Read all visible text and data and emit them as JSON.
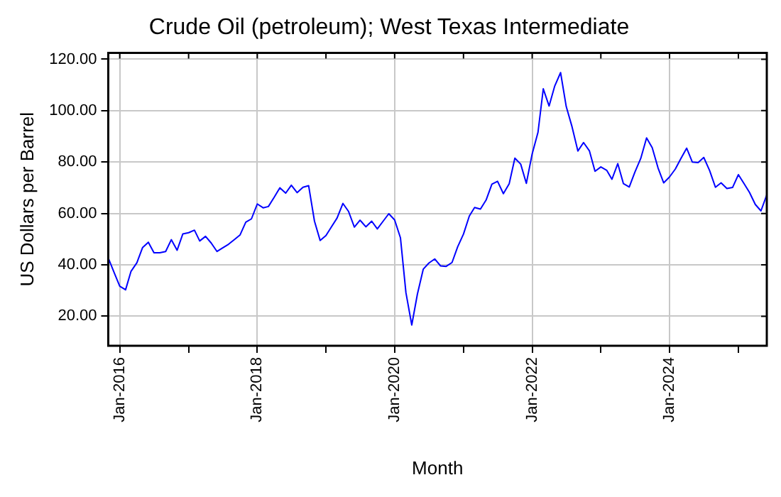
{
  "chart_data": {
    "type": "line",
    "title": "Crude Oil (petroleum); West Texas Intermediate",
    "xlabel": "Month",
    "ylabel": "US Dollars per Barrel",
    "x": [
      "2015-11",
      "2015-12",
      "2016-01",
      "2016-02",
      "2016-03",
      "2016-04",
      "2016-05",
      "2016-06",
      "2016-07",
      "2016-08",
      "2016-09",
      "2016-10",
      "2016-11",
      "2016-12",
      "2017-01",
      "2017-02",
      "2017-03",
      "2017-04",
      "2017-05",
      "2017-06",
      "2017-07",
      "2017-08",
      "2017-09",
      "2017-10",
      "2017-11",
      "2017-12",
      "2018-01",
      "2018-02",
      "2018-03",
      "2018-04",
      "2018-05",
      "2018-06",
      "2018-07",
      "2018-08",
      "2018-09",
      "2018-10",
      "2018-11",
      "2018-12",
      "2019-01",
      "2019-02",
      "2019-03",
      "2019-04",
      "2019-05",
      "2019-06",
      "2019-07",
      "2019-08",
      "2019-09",
      "2019-10",
      "2019-11",
      "2019-12",
      "2020-01",
      "2020-02",
      "2020-03",
      "2020-04",
      "2020-05",
      "2020-06",
      "2020-07",
      "2020-08",
      "2020-09",
      "2020-10",
      "2020-11",
      "2020-12",
      "2021-01",
      "2021-02",
      "2021-03",
      "2021-04",
      "2021-05",
      "2021-06",
      "2021-07",
      "2021-08",
      "2021-09",
      "2021-10",
      "2021-11",
      "2021-12",
      "2022-01",
      "2022-02",
      "2022-03",
      "2022-04",
      "2022-05",
      "2022-06",
      "2022-07",
      "2022-08",
      "2022-09",
      "2022-10",
      "2022-11",
      "2022-12",
      "2023-01",
      "2023-02",
      "2023-03",
      "2023-04",
      "2023-05",
      "2023-06",
      "2023-07",
      "2023-08",
      "2023-09",
      "2023-10",
      "2023-11",
      "2023-12",
      "2024-01",
      "2024-02",
      "2024-03",
      "2024-04",
      "2024-05",
      "2024-06",
      "2024-07",
      "2024-08",
      "2024-09",
      "2024-10",
      "2024-11",
      "2024-12",
      "2025-01",
      "2025-02",
      "2025-03",
      "2025-04",
      "2025-05",
      "2025-06"
    ],
    "series": [
      {
        "color": "#0000ff",
        "values": [
          42.7,
          37.2,
          31.7,
          30.3,
          37.5,
          40.8,
          46.7,
          48.8,
          44.7,
          44.7,
          45.2,
          49.8,
          45.7,
          52.0,
          52.5,
          53.5,
          49.3,
          51.1,
          48.5,
          45.2,
          46.6,
          48.0,
          49.8,
          51.6,
          56.6,
          57.9,
          63.7,
          62.2,
          62.7,
          66.3,
          70.0,
          67.9,
          71.0,
          68.1,
          70.2,
          70.8,
          57.0,
          49.5,
          51.4,
          55.0,
          58.2,
          63.9,
          60.8,
          54.7,
          57.4,
          54.8,
          57.0,
          54.0,
          57.0,
          59.9,
          57.5,
          50.5,
          29.2,
          16.6,
          28.6,
          38.3,
          40.7,
          42.3,
          39.6,
          39.4,
          40.9,
          47.0,
          52.0,
          59.0,
          62.3,
          61.7,
          65.2,
          71.4,
          72.5,
          67.7,
          71.6,
          81.5,
          79.2,
          71.7,
          83.2,
          91.6,
          108.5,
          101.8,
          109.6,
          114.8,
          101.6,
          93.7,
          84.3,
          87.6,
          84.4,
          76.4,
          78.1,
          76.8,
          73.3,
          79.4,
          71.6,
          70.3,
          76.1,
          81.4,
          89.4,
          85.6,
          77.7,
          71.9,
          74.2,
          77.3,
          81.3,
          85.4,
          80.0,
          79.8,
          81.8,
          76.7,
          70.2,
          71.9,
          69.7,
          70.1,
          75.1,
          71.5,
          68.2,
          63.5,
          61.0,
          67.3
        ]
      }
    ],
    "xlim": [
      "2015-11",
      "2025-06"
    ],
    "xticks": [
      {
        "value": "2016-01",
        "label": "Jan-2016"
      },
      {
        "value": "2017-01",
        "label": null
      },
      {
        "value": "2018-01",
        "label": "Jan-2018"
      },
      {
        "value": "2019-01",
        "label": null
      },
      {
        "value": "2020-01",
        "label": "Jan-2020"
      },
      {
        "value": "2021-01",
        "label": null
      },
      {
        "value": "2022-01",
        "label": "Jan-2022"
      },
      {
        "value": "2023-01",
        "label": null
      },
      {
        "value": "2024-01",
        "label": "Jan-2024"
      },
      {
        "value": "2025-01",
        "label": null
      }
    ],
    "ylim": [
      8.5,
      122.5
    ],
    "yticks": [
      {
        "value": 20,
        "label": "20.00"
      },
      {
        "value": 40,
        "label": "40.00"
      },
      {
        "value": 60,
        "label": "60.00"
      },
      {
        "value": 80,
        "label": "80.00"
      },
      {
        "value": 100,
        "label": "100.00"
      },
      {
        "value": 120,
        "label": "120.00"
      }
    ],
    "grid": true,
    "legend": false,
    "marker": "none",
    "line_style": "solid"
  }
}
